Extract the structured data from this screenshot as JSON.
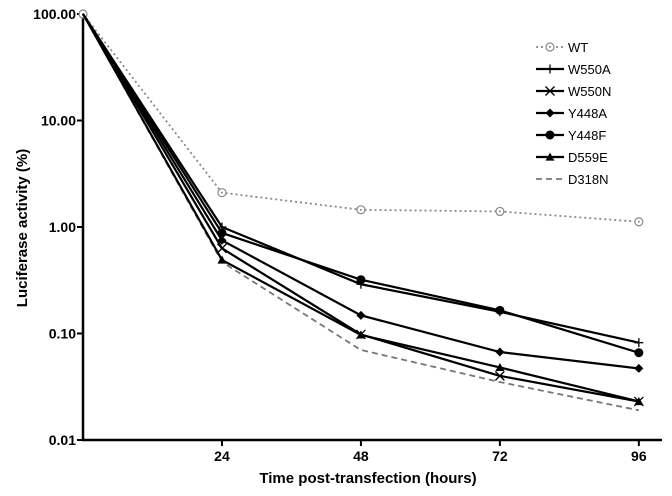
{
  "chart_data": {
    "type": "line",
    "title": "",
    "xlabel": "Time post-transfection (hours)",
    "ylabel": "Luciferase activity (%)",
    "x": [
      0,
      24,
      48,
      72,
      96
    ],
    "xticks": [
      24,
      48,
      72,
      96
    ],
    "xtick_labels": [
      "24",
      "48",
      "72",
      "96"
    ],
    "xlim": [
      0,
      100
    ],
    "yscale": "log",
    "ylim": [
      0.01,
      100
    ],
    "yticks": [
      0.01,
      0.1,
      1,
      10,
      100
    ],
    "ytick_labels": [
      "0.01",
      "0.10",
      "1.00",
      "10.00",
      "100.00"
    ],
    "grid": false,
    "legend_position": "top-right",
    "series": [
      {
        "name": "WT",
        "values": [
          100,
          2.1,
          1.45,
          1.4,
          1.12
        ],
        "color": "#888888",
        "style": "dotted",
        "marker": "circle-open"
      },
      {
        "name": "W550A",
        "values": [
          100,
          1.0,
          0.29,
          0.16,
          0.082
        ],
        "color": "#000000",
        "style": "solid",
        "marker": "plus"
      },
      {
        "name": "W550N",
        "values": [
          100,
          0.63,
          0.098,
          0.04,
          0.023
        ],
        "color": "#000000",
        "style": "solid",
        "marker": "x"
      },
      {
        "name": "Y448A",
        "values": [
          100,
          0.75,
          0.148,
          0.067,
          0.047
        ],
        "color": "#000000",
        "style": "solid",
        "marker": "diamond"
      },
      {
        "name": "Y448F",
        "values": [
          100,
          0.88,
          0.32,
          0.165,
          0.066
        ],
        "color": "#000000",
        "style": "solid",
        "marker": "circle"
      },
      {
        "name": "D559E",
        "values": [
          100,
          0.49,
          0.097,
          0.048,
          0.023
        ],
        "color": "#000000",
        "style": "solid",
        "marker": "triangle"
      },
      {
        "name": "D318N",
        "values": [
          100,
          0.47,
          0.07,
          0.035,
          0.019
        ],
        "color": "#777777",
        "style": "dashed",
        "marker": "none"
      }
    ]
  }
}
